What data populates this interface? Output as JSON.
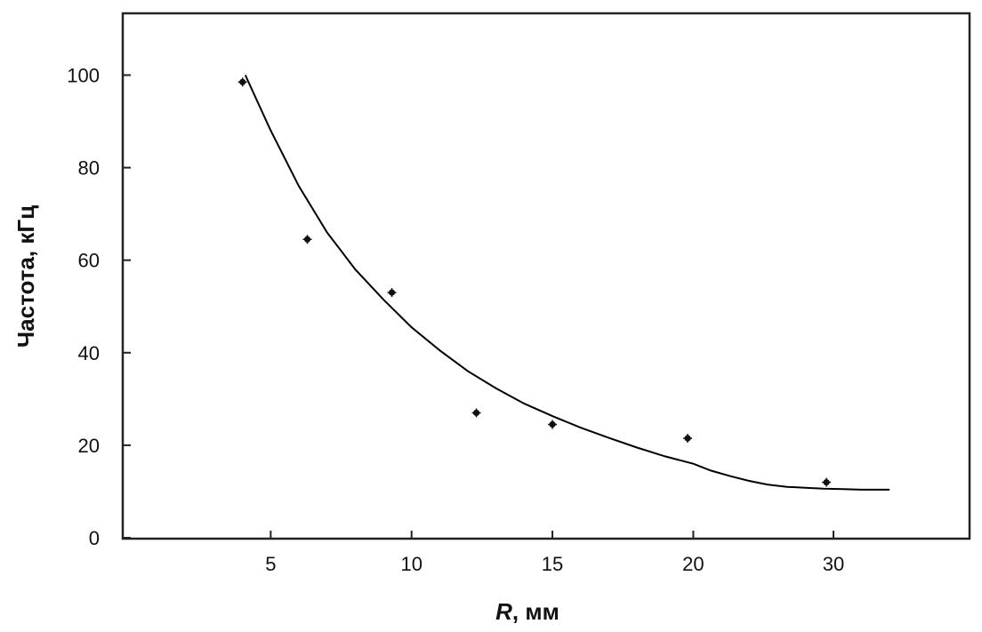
{
  "chart_data": {
    "type": "scatter",
    "title": "",
    "xlabel_var": "R",
    "xlabel_rest": ", мм",
    "ylabel": "Частота, кГц",
    "xlim": [
      0,
      34
    ],
    "ylim": [
      0,
      112
    ],
    "x_ticks": [
      5,
      10,
      15,
      20,
      30
    ],
    "y_ticks": [
      0,
      20,
      40,
      60,
      80,
      100
    ],
    "x_axis_scale": "piecewise-linear",
    "x_axis_note": "tick 30 sits at half spacing after 20",
    "grid": false,
    "legend": "none",
    "series": [
      {
        "kind": "markers",
        "x": [
          4,
          6.3,
          9.3,
          12.3,
          15,
          19.8,
          29.5
        ],
        "y": [
          98.5,
          64.5,
          53,
          27,
          24.5,
          21.5,
          12
        ]
      },
      {
        "kind": "fitted-curve",
        "x": [
          4.1,
          5,
          6,
          7,
          8,
          9,
          10,
          11,
          12,
          13,
          14,
          15,
          16,
          17,
          18,
          19,
          20,
          21.3,
          22.7,
          24,
          25.3,
          26.7,
          28,
          29.3,
          30.7,
          32,
          33.3,
          34
        ],
        "y": [
          100,
          88,
          76,
          66,
          58,
          51.5,
          45.5,
          40.5,
          36,
          32.3,
          29,
          26.3,
          23.8,
          21.6,
          19.5,
          17.6,
          16,
          14.5,
          13.3,
          12.3,
          11.5,
          11,
          10.8,
          10.6,
          10.5,
          10.4,
          10.4,
          10.4
        ]
      }
    ]
  }
}
